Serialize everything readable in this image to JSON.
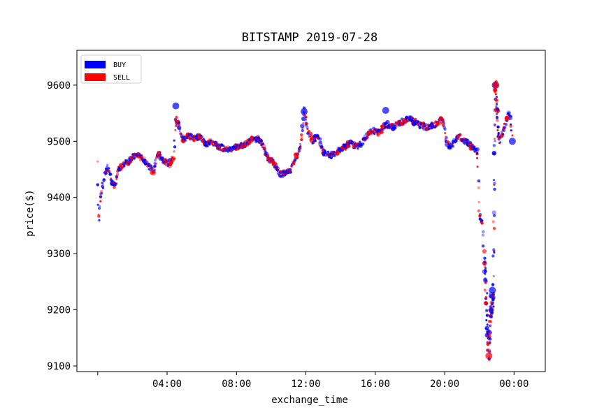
{
  "chart_data": {
    "type": "scatter",
    "title": "BITSTAMP 2019-07-28",
    "xlabel": "exchange_time",
    "ylabel": "price($)",
    "xlim_hours": [
      -1.2,
      25.8
    ],
    "ylim": [
      9090,
      9662
    ],
    "x_ticks": [
      {
        "hour": 0,
        "label": ""
      },
      {
        "hour": 4,
        "label": "04:00"
      },
      {
        "hour": 8,
        "label": "08:00"
      },
      {
        "hour": 12,
        "label": "12:00"
      },
      {
        "hour": 16,
        "label": "16:00"
      },
      {
        "hour": 20,
        "label": "20:00"
      },
      {
        "hour": 24,
        "label": "00:00"
      }
    ],
    "y_ticks": [
      9100,
      9200,
      9300,
      9400,
      9500,
      9600
    ],
    "grid": false,
    "legend_position": "top-left",
    "series": [
      {
        "name": "BUY",
        "color": "#0000ff"
      },
      {
        "name": "SELL",
        "color": "#ff0000"
      }
    ],
    "price_path": [
      [
        0.0,
        9460
      ],
      [
        0.05,
        9360
      ],
      [
        0.2,
        9410
      ],
      [
        0.4,
        9440
      ],
      [
        0.6,
        9455
      ],
      [
        0.8,
        9430
      ],
      [
        1.0,
        9420
      ],
      [
        1.2,
        9450
      ],
      [
        1.6,
        9462
      ],
      [
        2.0,
        9468
      ],
      [
        2.2,
        9478
      ],
      [
        2.5,
        9470
      ],
      [
        2.8,
        9462
      ],
      [
        3.0,
        9455
      ],
      [
        3.2,
        9445
      ],
      [
        3.5,
        9480
      ],
      [
        3.8,
        9465
      ],
      [
        4.1,
        9460
      ],
      [
        4.4,
        9470
      ],
      [
        4.5,
        9540
      ],
      [
        4.7,
        9525
      ],
      [
        4.9,
        9500
      ],
      [
        5.2,
        9510
      ],
      [
        5.6,
        9505
      ],
      [
        5.9,
        9510
      ],
      [
        6.2,
        9495
      ],
      [
        6.6,
        9498
      ],
      [
        7.0,
        9490
      ],
      [
        7.5,
        9485
      ],
      [
        8.0,
        9490
      ],
      [
        8.5,
        9495
      ],
      [
        9.0,
        9505
      ],
      [
        9.4,
        9500
      ],
      [
        9.8,
        9470
      ],
      [
        10.2,
        9460
      ],
      [
        10.5,
        9440
      ],
      [
        10.8,
        9445
      ],
      [
        11.1,
        9450
      ],
      [
        11.4,
        9470
      ],
      [
        11.7,
        9490
      ],
      [
        11.9,
        9555
      ],
      [
        12.1,
        9520
      ],
      [
        12.4,
        9500
      ],
      [
        12.7,
        9510
      ],
      [
        13.0,
        9480
      ],
      [
        13.4,
        9475
      ],
      [
        13.8,
        9480
      ],
      [
        14.2,
        9490
      ],
      [
        14.6,
        9495
      ],
      [
        15.0,
        9490
      ],
      [
        15.4,
        9505
      ],
      [
        15.8,
        9520
      ],
      [
        16.2,
        9515
      ],
      [
        16.6,
        9530
      ],
      [
        17.0,
        9525
      ],
      [
        17.5,
        9535
      ],
      [
        18.0,
        9540
      ],
      [
        18.5,
        9530
      ],
      [
        19.0,
        9525
      ],
      [
        19.5,
        9530
      ],
      [
        19.9,
        9540
      ],
      [
        20.1,
        9500
      ],
      [
        20.4,
        9490
      ],
      [
        20.8,
        9510
      ],
      [
        21.2,
        9500
      ],
      [
        21.6,
        9490
      ],
      [
        21.9,
        9480
      ],
      [
        22.0,
        9370
      ],
      [
        22.2,
        9350
      ],
      [
        22.45,
        9180
      ],
      [
        22.55,
        9120
      ],
      [
        22.65,
        9200
      ],
      [
        22.8,
        9220
      ],
      [
        22.88,
        9500
      ],
      [
        22.92,
        9600
      ],
      [
        23.0,
        9560
      ],
      [
        23.15,
        9500
      ],
      [
        23.3,
        9510
      ],
      [
        23.5,
        9530
      ],
      [
        23.65,
        9550
      ],
      [
        23.8,
        9545
      ],
      [
        23.9,
        9500
      ]
    ]
  }
}
